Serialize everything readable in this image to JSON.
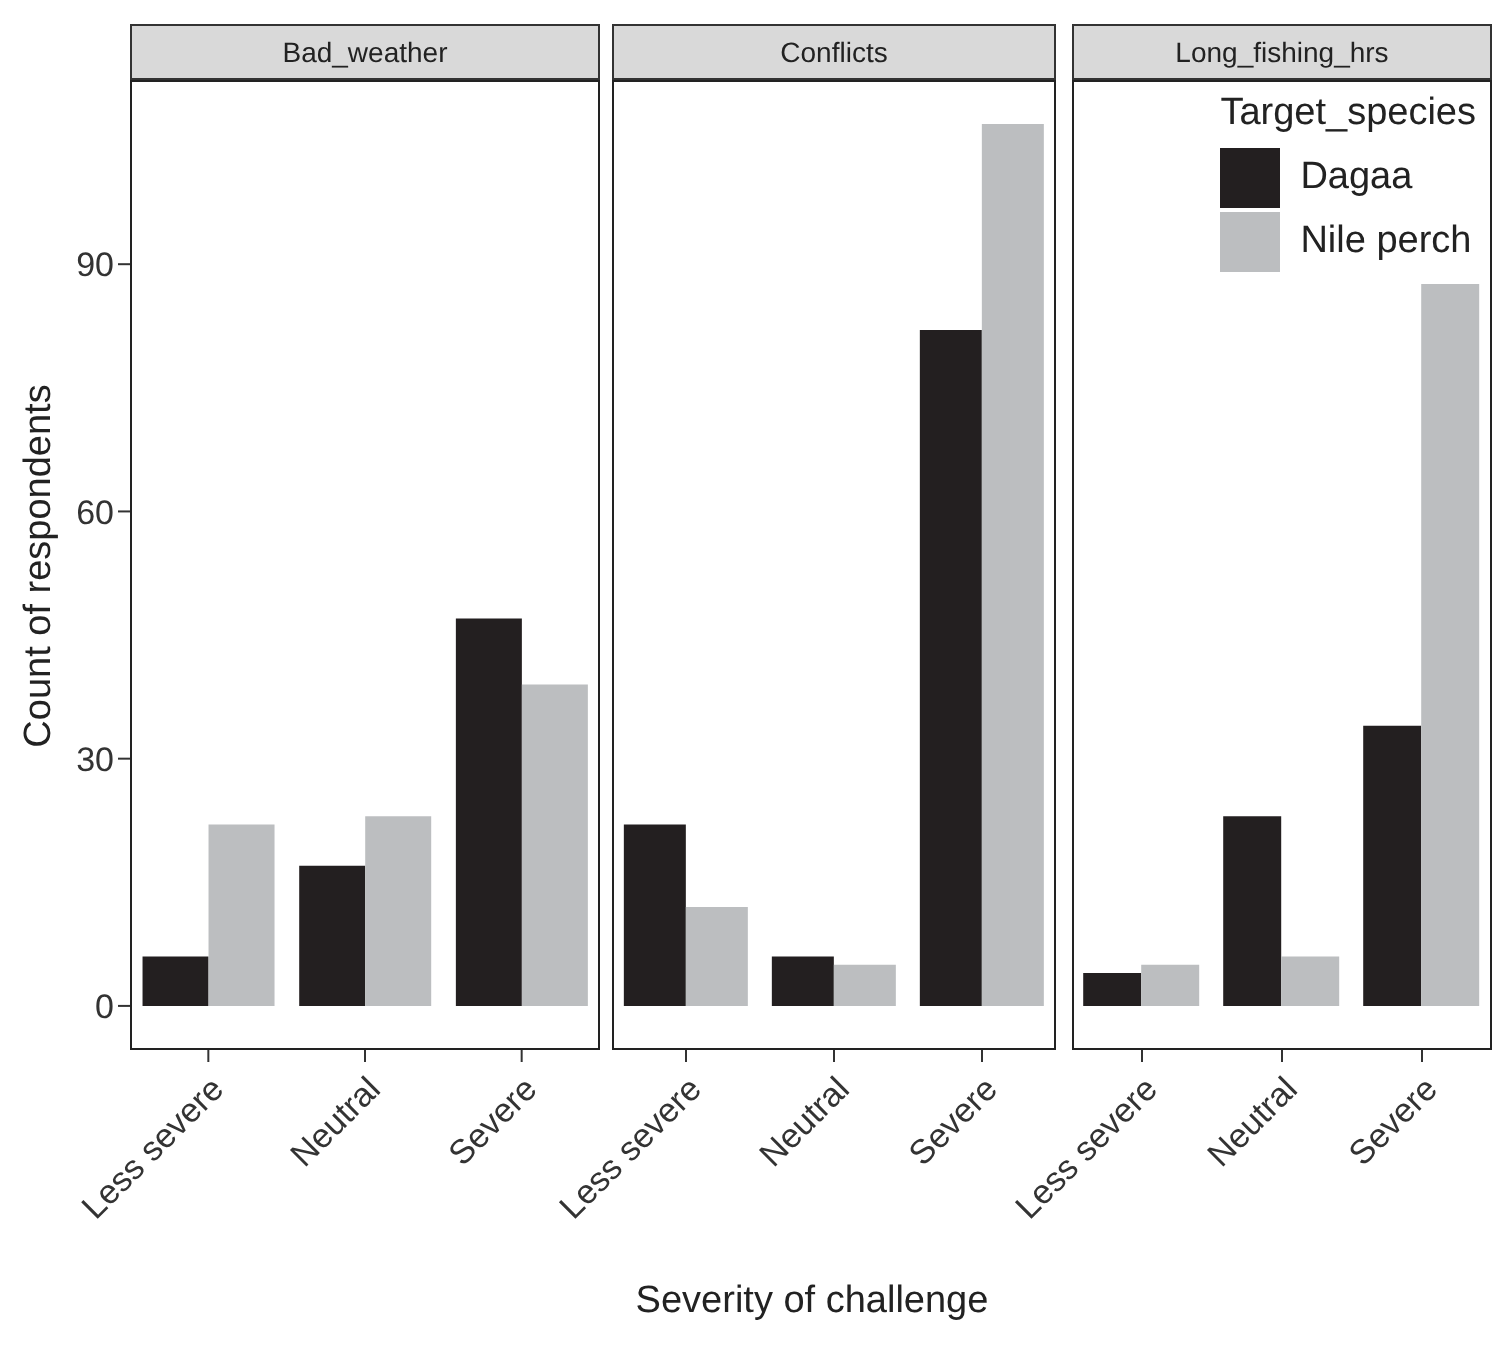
{
  "chart_data": [
    {
      "type": "bar",
      "title": "Bad_weather",
      "ylabel": "Count of respondents",
      "categories": [
        "Less severe",
        "Neutral",
        "Severe"
      ],
      "ylim": [
        -5.35,
        112.35
      ],
      "yticks": [
        0,
        30,
        60,
        90
      ],
      "series": [
        {
          "color": "#231f20",
          "values": [
            6,
            17,
            47
          ]
        },
        {
          "color": "#bcbec0",
          "values": [
            22,
            23,
            39
          ]
        }
      ]
    },
    {
      "type": "bar",
      "title": "Conflicts",
      "xlabel": "Severity of challenge",
      "categories": [
        "Less severe",
        "Neutral",
        "Severe"
      ],
      "ylim": [
        -5.35,
        112.35
      ],
      "tick_labels": "x",
      "series": [
        {
          "color": "#231f20",
          "values": [
            22,
            6,
            82
          ]
        },
        {
          "color": "#bcbec0",
          "values": [
            12,
            5,
            107
          ]
        }
      ]
    },
    {
      "type": "bar",
      "title": "Long_fishing_hrs",
      "categories": [
        "Less severe",
        "Neutral",
        "Severe"
      ],
      "ylim": [
        -5.35,
        112.35
      ],
      "tick_labels": "x",
      "legend": "top right",
      "legend_title": "Target_species",
      "series": [
        {
          "name": "Dagaa",
          "color": "#231f20",
          "values": [
            4,
            23,
            34
          ]
        },
        {
          "name": "Nile perch",
          "color": "#bcbec0",
          "values": [
            5,
            6,
            88
          ]
        }
      ]
    }
  ]
}
